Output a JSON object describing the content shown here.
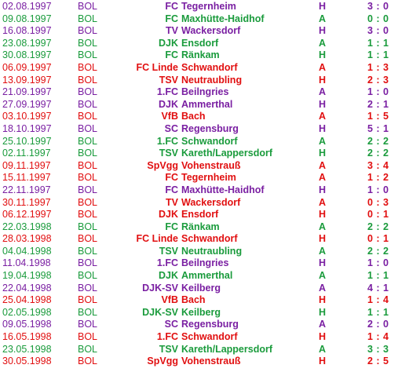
{
  "colors": {
    "win": "#1a9b3c",
    "draw_or_other": "#7a1fa2",
    "loss": "#e10f10"
  },
  "matches": [
    {
      "date": "02.08.1997",
      "league": "BOL",
      "prefix": "FC",
      "club": "Tegernheim",
      "venue": "H",
      "score": "3 : 0",
      "color": "purple"
    },
    {
      "date": "09.08.1997",
      "league": "BOL",
      "prefix": "FC",
      "club": "Maxhütte-Haidhof",
      "venue": "A",
      "score": "0 : 0",
      "color": "green"
    },
    {
      "date": "16.08.1997",
      "league": "BOL",
      "prefix": "TV",
      "club": "Wackersdorf",
      "venue": "H",
      "score": "3 : 0",
      "color": "purple"
    },
    {
      "date": "23.08.1997",
      "league": "BOL",
      "prefix": "DJK",
      "club": "Ensdorf",
      "venue": "A",
      "score": "1 : 1",
      "color": "green"
    },
    {
      "date": "30.08.1997",
      "league": "BOL",
      "prefix": "FC",
      "club": "Ränkam",
      "venue": "H",
      "score": "1 : 1",
      "color": "green"
    },
    {
      "date": "06.09.1997",
      "league": "BOL",
      "prefix": "FC Linde",
      "club": "Schwandorf",
      "venue": "A",
      "score": "1 : 3",
      "color": "red"
    },
    {
      "date": "13.09.1997",
      "league": "BOL",
      "prefix": "TSV",
      "club": "Neutraubling",
      "venue": "H",
      "score": "2 : 3",
      "color": "red"
    },
    {
      "date": "21.09.1997",
      "league": "BOL",
      "prefix": "1.FC",
      "club": "Beilngries",
      "venue": "A",
      "score": "1 : 0",
      "color": "purple"
    },
    {
      "date": "27.09.1997",
      "league": "BOL",
      "prefix": "DJK",
      "club": "Ammerthal",
      "venue": "H",
      "score": "2 : 1",
      "color": "purple"
    },
    {
      "date": "03.10.1997",
      "league": "BOL",
      "prefix": "VfB",
      "club": "Bach",
      "venue": "A",
      "score": "1 : 5",
      "color": "red"
    },
    {
      "date": "18.10.1997",
      "league": "BOL",
      "prefix": "SC",
      "club": "Regensburg",
      "venue": "H",
      "score": "5 : 1",
      "color": "purple"
    },
    {
      "date": "25.10.1997",
      "league": "BOL",
      "prefix": "1.FC",
      "club": "Schwandorf",
      "venue": "A",
      "score": "2 : 2",
      "color": "green"
    },
    {
      "date": "02.11.1997",
      "league": "BOL",
      "prefix": "TSV",
      "club": "Kareth/Lappersdorf",
      "venue": "H",
      "score": "2 : 2",
      "color": "green"
    },
    {
      "date": "09.11.1997",
      "league": "BOL",
      "prefix": "SpVgg",
      "club": "Vohenstrauß",
      "venue": "A",
      "score": "3 : 4",
      "color": "red"
    },
    {
      "date": "15.11.1997",
      "league": "BOL",
      "prefix": "FC",
      "club": "Tegernheim",
      "venue": "A",
      "score": "1 : 2",
      "color": "red"
    },
    {
      "date": "22.11.1997",
      "league": "BOL",
      "prefix": "FC",
      "club": "Maxhütte-Haidhof",
      "venue": "H",
      "score": "1 : 0",
      "color": "purple"
    },
    {
      "date": "30.11.1997",
      "league": "BOL",
      "prefix": "TV",
      "club": "Wackersdorf",
      "venue": "A",
      "score": "0 : 3",
      "color": "red"
    },
    {
      "date": "06.12.1997",
      "league": "BOL",
      "prefix": "DJK",
      "club": "Ensdorf",
      "venue": "H",
      "score": "0 : 1",
      "color": "red"
    },
    {
      "date": "22.03.1998",
      "league": "BOL",
      "prefix": "FC",
      "club": "Ränkam",
      "venue": "A",
      "score": "2 : 2",
      "color": "green"
    },
    {
      "date": "28.03.1998",
      "league": "BOL",
      "prefix": "FC Linde",
      "club": "Schwandorf",
      "venue": "H",
      "score": "0 : 1",
      "color": "red"
    },
    {
      "date": "04.04.1998",
      "league": "BOL",
      "prefix": "TSV",
      "club": "Neutraubling",
      "venue": "A",
      "score": "2 : 2",
      "color": "green"
    },
    {
      "date": "11.04.1998",
      "league": "BOL",
      "prefix": "1.FC",
      "club": "Beilngries",
      "venue": "H",
      "score": "1 : 0",
      "color": "purple"
    },
    {
      "date": "19.04.1998",
      "league": "BOL",
      "prefix": "DJK",
      "club": "Ammerthal",
      "venue": "A",
      "score": "1 : 1",
      "color": "green"
    },
    {
      "date": "22.04.1998",
      "league": "BOL",
      "prefix": "DJK-SV",
      "club": "Keilberg",
      "venue": "A",
      "score": "4 : 1",
      "color": "purple"
    },
    {
      "date": "25.04.1998",
      "league": "BOL",
      "prefix": "VfB",
      "club": "Bach",
      "venue": "H",
      "score": "1 : 4",
      "color": "red"
    },
    {
      "date": "02.05.1998",
      "league": "BOL",
      "prefix": "DJK-SV",
      "club": "Keilberg",
      "venue": "H",
      "score": "1 : 1",
      "color": "green"
    },
    {
      "date": "09.05.1998",
      "league": "BOL",
      "prefix": "SC",
      "club": "Regensburg",
      "venue": "A",
      "score": "2 : 0",
      "color": "purple"
    },
    {
      "date": "16.05.1998",
      "league": "BOL",
      "prefix": "1.FC",
      "club": "Schwandorf",
      "venue": "H",
      "score": "1 : 4",
      "color": "red"
    },
    {
      "date": "23.05.1998",
      "league": "BOL",
      "prefix": "TSV",
      "club": "Kareth/Lappersdorf",
      "venue": "A",
      "score": "3 : 3",
      "color": "green"
    },
    {
      "date": "30.05.1998",
      "league": "BOL",
      "prefix": "SpVgg",
      "club": "Vohenstrauß",
      "venue": "H",
      "score": "2 : 5",
      "color": "red"
    }
  ]
}
